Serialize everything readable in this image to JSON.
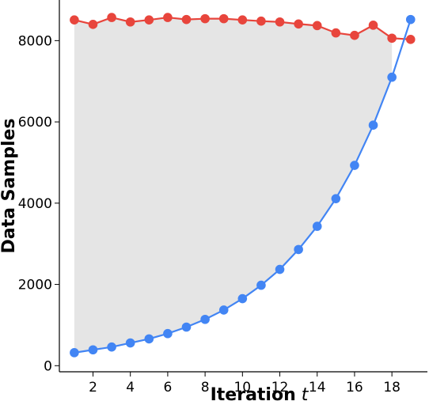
{
  "chart_data": {
    "type": "line",
    "title": "",
    "xlabel": "Iteration",
    "xlabel_var": "t",
    "ylabel": "Data Samples",
    "x": [
      1,
      2,
      3,
      4,
      5,
      6,
      7,
      8,
      9,
      10,
      11,
      12,
      13,
      14,
      15,
      16,
      17,
      18,
      19
    ],
    "xlim": [
      0.2,
      19.9
    ],
    "ylim": [
      -150,
      9000
    ],
    "xticks": [
      2,
      4,
      6,
      8,
      10,
      12,
      14,
      16,
      18
    ],
    "yticks": [
      0,
      2000,
      4000,
      6000,
      8000
    ],
    "grid": false,
    "legend": "none",
    "series": [
      {
        "color": "#e8453c",
        "values": [
          8510,
          8400,
          8570,
          8460,
          8510,
          8570,
          8520,
          8540,
          8540,
          8510,
          8480,
          8460,
          8410,
          8370,
          8190,
          8130,
          8380,
          8060,
          8030
        ]
      },
      {
        "color": "#4285f4",
        "values": [
          320,
          390,
          460,
          560,
          660,
          790,
          950,
          1140,
          1370,
          1650,
          1980,
          2370,
          2860,
          3430,
          4110,
          4930,
          5920,
          7100,
          8520
        ]
      }
    ],
    "fill_between": {
      "x_from": 1,
      "x_to": 18,
      "color": "#e5e5e5"
    }
  }
}
